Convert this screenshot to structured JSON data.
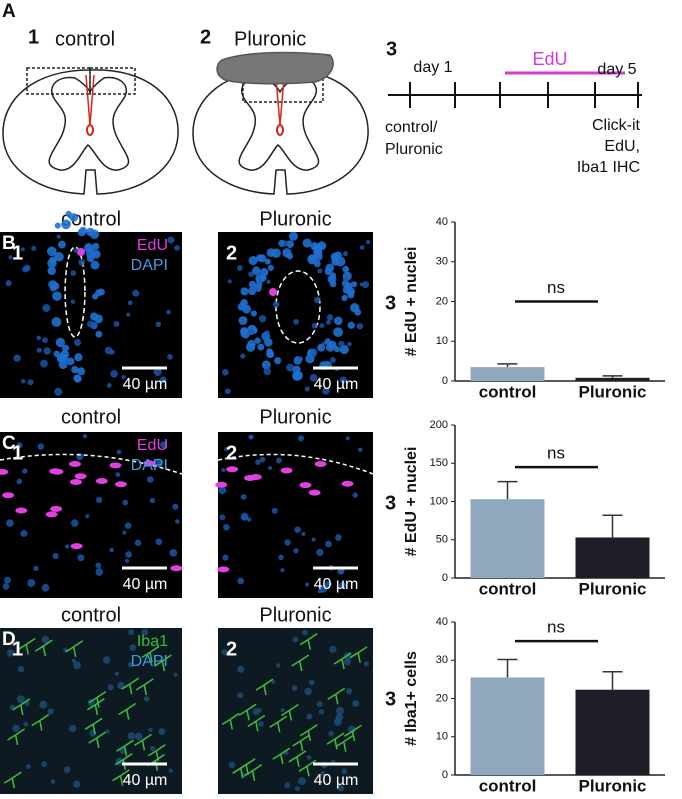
{
  "panel_a": {
    "letter": "A",
    "diagrams": [
      {
        "number": "1",
        "label": "control"
      },
      {
        "number": "2",
        "label": "Pluronic"
      }
    ],
    "timeline": {
      "number": "3",
      "day_start": "day 1",
      "treatment": "EdU",
      "day_end": "day 5",
      "start_note": [
        "control/",
        "Pluronic"
      ],
      "end_note": [
        "Click-it",
        "EdU,",
        "Iba1 IHC"
      ]
    }
  },
  "rows": [
    {
      "letter": "B",
      "conditions": [
        "control",
        "Pluronic"
      ],
      "image_numbers": [
        "1",
        "2"
      ],
      "stains": [
        "EdU",
        "DAPI"
      ],
      "scale_bar": "40 µm",
      "chart_number": "3"
    },
    {
      "letter": "C",
      "conditions": [
        "control",
        "Pluronic"
      ],
      "image_numbers": [
        "1",
        "2"
      ],
      "stains": [
        "EdU",
        "DAPI"
      ],
      "scale_bar": "40 µm",
      "chart_number": "3"
    },
    {
      "letter": "D",
      "conditions": [
        "control",
        "Pluronic"
      ],
      "image_numbers": [
        "1",
        "2"
      ],
      "stains": [
        "Iba1",
        "DAPI"
      ],
      "scale_bar": "40 µm",
      "chart_number": "3"
    }
  ],
  "chart_data": [
    {
      "type": "bar",
      "y_label": "# EdU + nuclei",
      "categories": [
        "control",
        "Pluronic"
      ],
      "values": [
        3.5,
        0.8
      ],
      "errors": [
        0.8,
        0.5
      ],
      "colors": [
        "#8fa8bd",
        "#1e1e26"
      ],
      "ylim": [
        0,
        40
      ],
      "yticks": [
        0,
        10,
        20,
        30,
        40
      ],
      "annotation": "ns"
    },
    {
      "type": "bar",
      "y_label": "# EdU + nuclei",
      "categories": [
        "control",
        "Pluronic"
      ],
      "values": [
        103,
        53
      ],
      "errors": [
        23,
        29
      ],
      "colors": [
        "#8fa8bd",
        "#1e1e26"
      ],
      "ylim": [
        0,
        200
      ],
      "yticks": [
        0,
        50,
        100,
        150,
        200
      ],
      "annotation": "ns"
    },
    {
      "type": "bar",
      "y_label": "# Iba1+ cells",
      "categories": [
        "control",
        "Pluronic"
      ],
      "values": [
        25.5,
        22.3
      ],
      "errors": [
        4.7,
        4.7
      ],
      "colors": [
        "#8fa8bd",
        "#1e1e26"
      ],
      "ylim": [
        0,
        40
      ],
      "yticks": [
        0,
        10,
        20,
        30,
        40
      ],
      "annotation": "ns"
    }
  ]
}
